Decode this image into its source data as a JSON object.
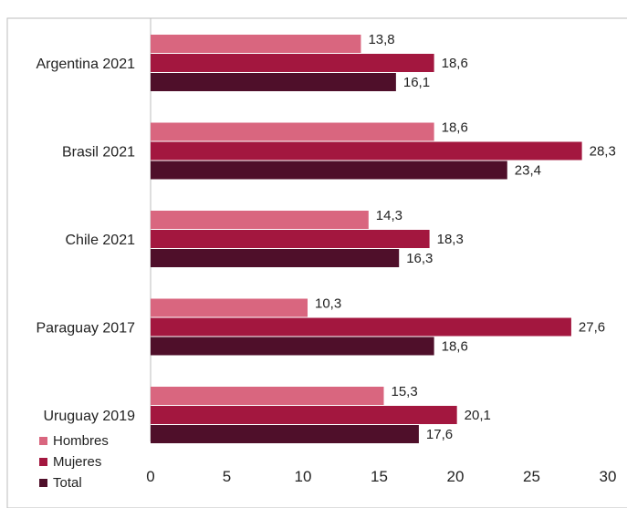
{
  "chart_data": {
    "type": "bar",
    "orientation": "horizontal",
    "title": "",
    "xlabel": "",
    "ylabel": "",
    "categories": [
      "Argentina 2021",
      "Brasil 2021",
      "Chile 2021",
      "Paraguay 2017",
      "Uruguay 2019"
    ],
    "series": [
      {
        "name": "Hombres",
        "color": "#d9667f",
        "values": [
          13.8,
          18.6,
          14.3,
          10.3,
          15.3
        ],
        "labels": [
          "13,8",
          "18,6",
          "14,3",
          "10,3",
          "15,3"
        ]
      },
      {
        "name": "Mujeres",
        "color": "#a3173f",
        "values": [
          18.6,
          28.3,
          18.3,
          27.6,
          20.1
        ],
        "labels": [
          "18,6",
          "28,3",
          "18,3",
          "27,6",
          "20,1"
        ]
      },
      {
        "name": "Total",
        "color": "#4f0f2a",
        "values": [
          16.1,
          23.4,
          16.3,
          18.6,
          17.6
        ],
        "labels": [
          "16,1",
          "23,4",
          "16,3",
          "18,6",
          "17,6"
        ]
      }
    ],
    "xlim": [
      0,
      30
    ],
    "xticks": [
      0,
      5,
      10,
      15,
      20,
      25,
      30
    ],
    "xtick_labels": [
      "0",
      "5",
      "10",
      "15",
      "20",
      "25",
      "30"
    ],
    "grid": false,
    "legend_position": "bottom-left"
  }
}
